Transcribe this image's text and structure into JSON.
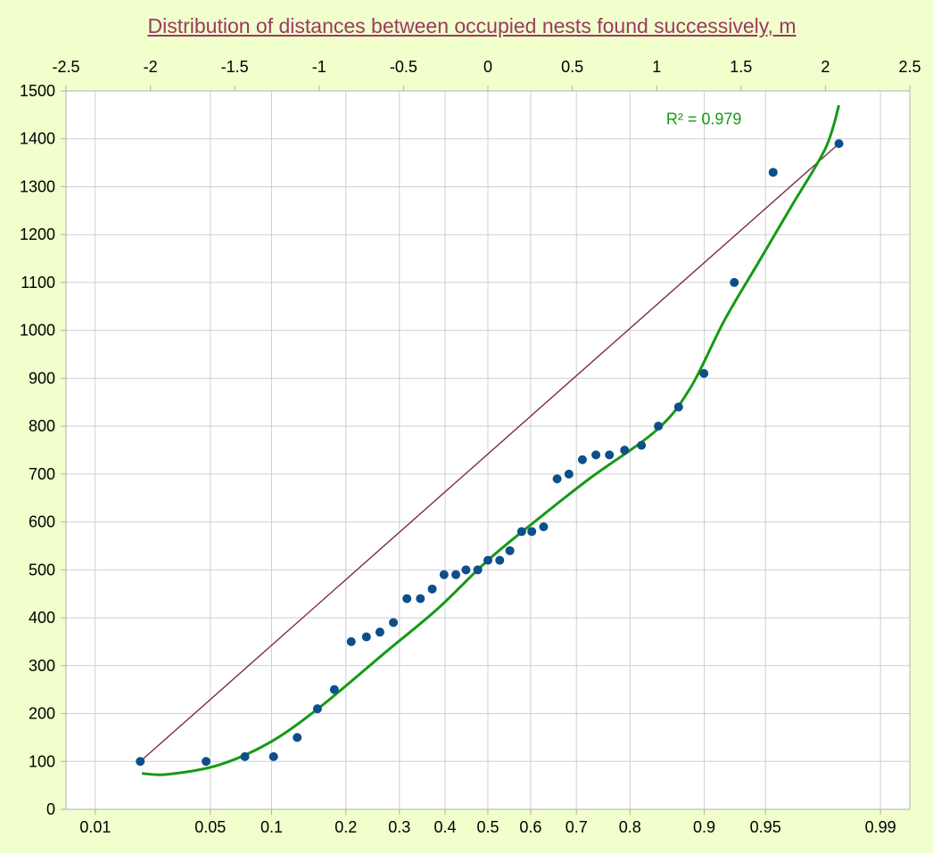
{
  "chart_data": {
    "type": "scatter",
    "title": "Distribution of distances between occupied nests found successively, m",
    "y_axis": {
      "range": [
        0,
        1500
      ],
      "ticks": [
        0,
        100,
        200,
        300,
        400,
        500,
        600,
        700,
        800,
        900,
        1000,
        1100,
        1200,
        1300,
        1400,
        1500
      ]
    },
    "x_axis_top": {
      "range": [
        -2.5,
        2.5
      ],
      "ticks": [
        "-2.5",
        "-2",
        "-1.5",
        "-1",
        "-0.5",
        "0",
        "0.5",
        "1",
        "1.5",
        "2",
        "2.5"
      ],
      "scale": "normal quantile (z)"
    },
    "x_axis_bottom": {
      "scale": "cumulative probability",
      "labels": [
        {
          "p": 0.01,
          "text": "0.01"
        },
        {
          "p": 0.05,
          "text": "0.05"
        },
        {
          "p": 0.1,
          "text": "0.1"
        },
        {
          "p": 0.2,
          "text": "0.2"
        },
        {
          "p": 0.3,
          "text": "0.3"
        },
        {
          "p": 0.4,
          "text": "0.4"
        },
        {
          "p": 0.5,
          "text": "0.5"
        },
        {
          "p": 0.6,
          "text": "0.6"
        },
        {
          "p": 0.7,
          "text": "0.7"
        },
        {
          "p": 0.8,
          "text": "0.8"
        },
        {
          "p": 0.9,
          "text": "0.9"
        },
        {
          "p": 0.95,
          "text": "0.95"
        },
        {
          "p": 0.99,
          "text": "0.99"
        }
      ]
    },
    "grid": true,
    "series": [
      {
        "type": "scatter",
        "color": "#0d4f8b",
        "points": [
          [
            -2.06,
            100
          ],
          [
            -1.67,
            100
          ],
          [
            -1.44,
            110
          ],
          [
            -1.27,
            110
          ],
          [
            -1.13,
            150
          ],
          [
            -1.01,
            210
          ],
          [
            -0.91,
            250
          ],
          [
            -0.81,
            350
          ],
          [
            -0.72,
            360
          ],
          [
            -0.64,
            370
          ],
          [
            -0.56,
            390
          ],
          [
            -0.48,
            440
          ],
          [
            -0.4,
            440
          ],
          [
            -0.33,
            460
          ],
          [
            -0.26,
            490
          ],
          [
            -0.19,
            490
          ],
          [
            -0.13,
            500
          ],
          [
            -0.06,
            500
          ],
          [
            0.0,
            520
          ],
          [
            0.07,
            520
          ],
          [
            0.13,
            540
          ],
          [
            0.2,
            580
          ],
          [
            0.26,
            580
          ],
          [
            0.33,
            590
          ],
          [
            0.41,
            690
          ],
          [
            0.48,
            700
          ],
          [
            0.56,
            730
          ],
          [
            0.64,
            740
          ],
          [
            0.72,
            740
          ],
          [
            0.81,
            750
          ],
          [
            0.91,
            760
          ],
          [
            1.01,
            800
          ],
          [
            1.13,
            840
          ],
          [
            1.28,
            910
          ],
          [
            1.46,
            1100
          ],
          [
            1.69,
            1330
          ],
          [
            2.08,
            1390
          ]
        ]
      },
      {
        "type": "line",
        "color": "#7a2b4e",
        "points": [
          [
            -2.06,
            100
          ],
          [
            2.08,
            1390
          ]
        ]
      },
      {
        "type": "trendline",
        "fit": "polynomial",
        "color": "#159a15",
        "points": [
          [
            -2.05,
            75
          ],
          [
            -1.9,
            73
          ],
          [
            -1.6,
            92
          ],
          [
            -1.3,
            138
          ],
          [
            -1.0,
            212
          ],
          [
            -0.6,
            330
          ],
          [
            -0.3,
            418
          ],
          [
            0.0,
            520
          ],
          [
            0.3,
            607
          ],
          [
            0.6,
            690
          ],
          [
            1.0,
            792
          ],
          [
            1.2,
            880
          ],
          [
            1.4,
            1020
          ],
          [
            1.6,
            1140
          ],
          [
            1.8,
            1260
          ],
          [
            2.0,
            1380
          ],
          [
            2.08,
            1470
          ]
        ]
      }
    ],
    "annotation": {
      "text": "R² = 0.979",
      "color": "#159a15",
      "position": "top-right"
    }
  }
}
